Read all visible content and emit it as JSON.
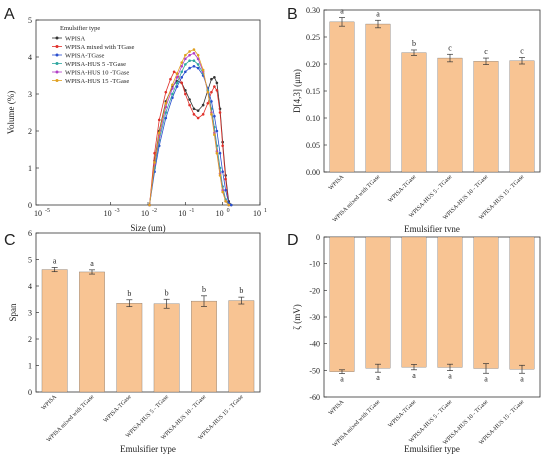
{
  "panels": {
    "A": "A",
    "B": "B",
    "C": "C",
    "D": "D"
  },
  "chart_data": [
    {
      "panel": "A",
      "type": "line",
      "xlabel": "Size (um)",
      "ylabel": "Volume (%)",
      "xscale": "log",
      "xlim": [
        1e-05,
        10
      ],
      "ylim": [
        0,
        5
      ],
      "xticks": [
        "10",
        "10",
        "10",
        "10",
        "10"
      ],
      "xtick_exponents": [
        "-3",
        "-2",
        "-1",
        "0",
        "1"
      ],
      "yticks": [
        "0",
        "1",
        "2",
        "3",
        "4",
        "5"
      ],
      "legend_title": "Emulsifier type",
      "legend_position": "top-left",
      "series": [
        {
          "name": "WPISA",
          "color": "#333333",
          "marker": "square",
          "x": [
            0.011,
            0.015,
            0.02,
            0.03,
            0.045,
            0.06,
            0.08,
            0.1,
            0.13,
            0.17,
            0.22,
            0.3,
            0.4,
            0.5,
            0.6,
            0.7,
            0.85,
            1.0,
            1.2,
            1.45,
            1.7
          ],
          "y": [
            0.0,
            1.2,
            2.0,
            2.8,
            3.2,
            3.35,
            3.3,
            3.1,
            2.85,
            2.6,
            2.55,
            2.7,
            3.1,
            3.4,
            3.45,
            3.3,
            2.6,
            1.7,
            0.8,
            0.1,
            0.0
          ]
        },
        {
          "name": "WPISA mixed with TGase",
          "color": "#e0302a",
          "marker": "circle",
          "x": [
            0.011,
            0.015,
            0.02,
            0.03,
            0.04,
            0.05,
            0.06,
            0.08,
            0.1,
            0.13,
            0.17,
            0.22,
            0.3,
            0.4,
            0.5,
            0.6,
            0.7,
            0.85,
            1.0,
            1.2,
            1.45
          ],
          "y": [
            0.0,
            1.4,
            2.3,
            3.05,
            3.4,
            3.6,
            3.55,
            3.3,
            3.0,
            2.7,
            2.45,
            2.35,
            2.45,
            2.75,
            3.05,
            3.2,
            3.1,
            2.5,
            1.6,
            0.7,
            0.0
          ]
        },
        {
          "name": "WPISA-TGase",
          "color": "#2a4fcf",
          "marker": "triangle",
          "x": [
            0.011,
            0.015,
            0.02,
            0.03,
            0.045,
            0.06,
            0.08,
            0.1,
            0.13,
            0.17,
            0.22,
            0.3,
            0.4,
            0.5,
            0.6,
            0.7,
            0.85,
            1.0,
            1.2,
            1.45,
            1.7
          ],
          "y": [
            0.0,
            0.9,
            1.6,
            2.35,
            2.9,
            3.2,
            3.45,
            3.6,
            3.7,
            3.75,
            3.7,
            3.5,
            3.15,
            2.8,
            2.4,
            2.0,
            1.4,
            0.9,
            0.4,
            0.05,
            0.0
          ]
        },
        {
          "name": "WPISA-HUS 5 -TGase",
          "color": "#2fa7a0",
          "marker": "diamond",
          "x": [
            0.011,
            0.015,
            0.02,
            0.03,
            0.045,
            0.06,
            0.08,
            0.1,
            0.13,
            0.17,
            0.22,
            0.3,
            0.4,
            0.5,
            0.6,
            0.7,
            0.85,
            1.0,
            1.2,
            1.45
          ],
          "y": [
            0.0,
            1.0,
            1.75,
            2.5,
            3.0,
            3.3,
            3.6,
            3.8,
            3.9,
            3.9,
            3.8,
            3.55,
            3.1,
            2.6,
            2.1,
            1.6,
            1.0,
            0.5,
            0.15,
            0.0
          ]
        },
        {
          "name": "WPISA-HUS 10 -TGase",
          "color": "#b23fc7",
          "marker": "triangle-down",
          "x": [
            0.011,
            0.015,
            0.02,
            0.03,
            0.045,
            0.06,
            0.08,
            0.1,
            0.13,
            0.17,
            0.22,
            0.3,
            0.4,
            0.5,
            0.6,
            0.7,
            0.85,
            1.0,
            1.2,
            1.45
          ],
          "y": [
            0.0,
            1.1,
            1.85,
            2.65,
            3.15,
            3.45,
            3.75,
            3.95,
            4.05,
            4.1,
            3.95,
            3.6,
            3.05,
            2.5,
            1.95,
            1.45,
            0.85,
            0.4,
            0.1,
            0.0
          ]
        },
        {
          "name": "WPISA-HUS 15 -TGase",
          "color": "#e0a020",
          "marker": "triangle-left",
          "x": [
            0.011,
            0.015,
            0.02,
            0.03,
            0.045,
            0.06,
            0.08,
            0.1,
            0.13,
            0.17,
            0.22,
            0.3,
            0.4,
            0.5,
            0.6,
            0.7,
            0.85,
            1.0,
            1.2,
            1.45
          ],
          "y": [
            0.0,
            1.15,
            1.95,
            2.75,
            3.25,
            3.55,
            3.85,
            4.05,
            4.15,
            4.2,
            4.05,
            3.65,
            3.05,
            2.45,
            1.9,
            1.4,
            0.8,
            0.35,
            0.1,
            0.0
          ]
        }
      ]
    },
    {
      "panel": "B",
      "type": "bar",
      "xlabel": "Emulsifier tvne",
      "ylabel": "D[4,3] (μm)",
      "ylim": [
        0.0,
        0.3
      ],
      "yticks": [
        "0.00",
        "0.05",
        "0.10",
        "0.15",
        "0.20",
        "0.25",
        "0.30"
      ],
      "bar_color": "#f8c493",
      "categories": [
        "WPISA",
        "WPISA mixed with TGase",
        "WPISA-TGase",
        "WPISA-HUS 5 - TGase",
        "WPISA-HUS 10 - TGase",
        "WPISA-HUS 15 - TGase"
      ],
      "values": [
        0.278,
        0.274,
        0.221,
        0.211,
        0.205,
        0.206
      ],
      "errors": [
        0.008,
        0.007,
        0.005,
        0.007,
        0.006,
        0.006
      ],
      "letters": [
        "a",
        "a",
        "b",
        "c",
        "c",
        "c"
      ]
    },
    {
      "panel": "C",
      "type": "bar",
      "xlabel": "Emulsifier type",
      "ylabel": "Span",
      "ylim": [
        0,
        6
      ],
      "yticks": [
        "0",
        "1",
        "2",
        "3",
        "4",
        "5",
        "6"
      ],
      "bar_color": "#f8c493",
      "categories": [
        "WPISA",
        "WPISA mixed with TGase",
        "WPISA-TGase",
        "WPISA-HUS 5 - TGase",
        "WPISA-HUS 10 - TGase",
        "WPISA-HUS 15 - TGase"
      ],
      "values": [
        4.62,
        4.53,
        3.35,
        3.33,
        3.43,
        3.45
      ],
      "errors": [
        0.08,
        0.08,
        0.13,
        0.17,
        0.2,
        0.13
      ],
      "letters": [
        "a",
        "a",
        "b",
        "b",
        "b",
        "b"
      ]
    },
    {
      "panel": "D",
      "type": "bar",
      "xlabel": "Emulsifier type",
      "ylabel": "ζ (mV)",
      "ylim": [
        -60,
        0
      ],
      "yticks": [
        "0",
        "-10",
        "-20",
        "-30",
        "-40",
        "-50",
        "-60"
      ],
      "bar_color": "#f8c493",
      "categories": [
        "WPISA",
        "WPISA mixed with TGase",
        "WPISA-TGase",
        "WPISA-HUS 5 - TGase",
        "WPISA-HUS 10 - TGase",
        "WPISA-HUS 15 - TGase"
      ],
      "values": [
        -50.5,
        -49.2,
        -48.8,
        -48.9,
        -49.3,
        -49.6
      ],
      "errors": [
        0.7,
        1.5,
        1.0,
        1.2,
        1.8,
        1.5
      ],
      "letters": [
        "a",
        "a",
        "a",
        "a",
        "a",
        "a"
      ]
    }
  ]
}
